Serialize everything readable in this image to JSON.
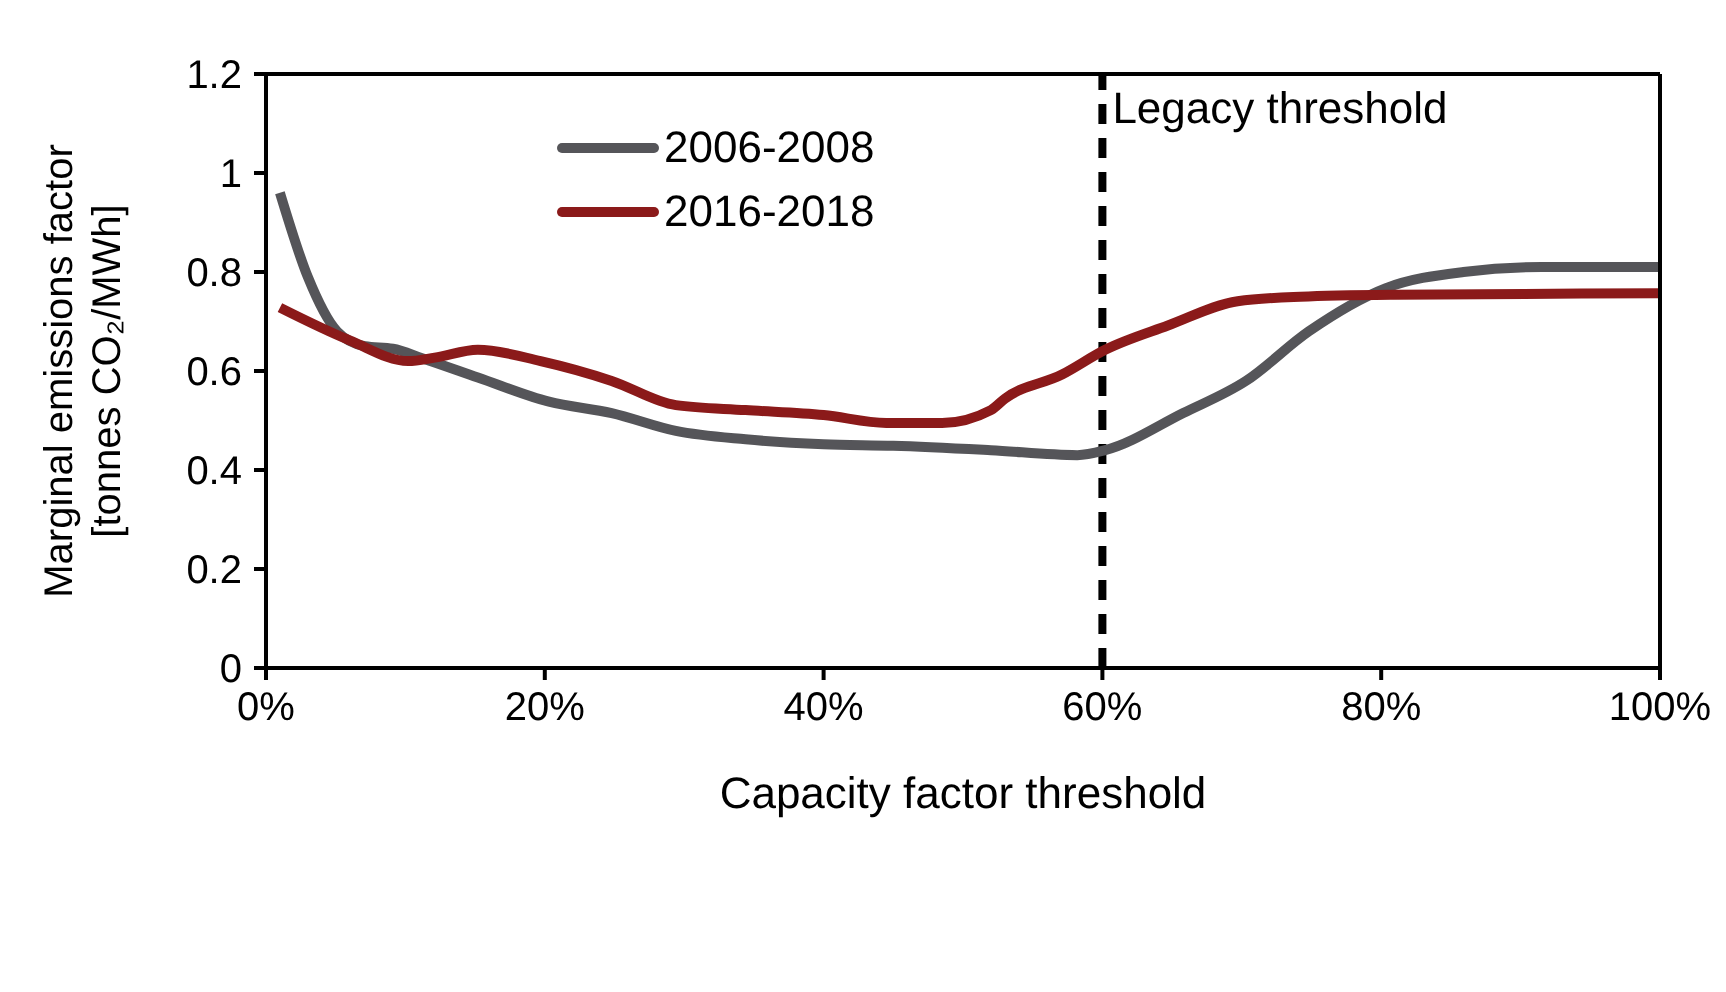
{
  "chart_data": {
    "type": "line",
    "xlabel": "Capacity factor threshold",
    "ylabel": "Marginal emissions factor [tonnes CO₂/MWh]",
    "xlim": [
      0,
      100
    ],
    "xticks": [
      {
        "value": 0,
        "label": "0%"
      },
      {
        "value": 20,
        "label": "20%"
      },
      {
        "value": 40,
        "label": "40%"
      },
      {
        "value": 60,
        "label": "60%"
      },
      {
        "value": 80,
        "label": "80%"
      },
      {
        "value": 100,
        "label": "100%"
      }
    ],
    "ylim": [
      0,
      1.2
    ],
    "yticks": [
      0,
      0.2,
      0.4,
      0.6,
      0.8,
      1,
      1.2
    ],
    "legend": "top left",
    "marker": "none",
    "line_style": "solid",
    "series": [
      {
        "name": "2006-2008",
        "color": "#555559",
        "x": [
          1,
          3,
          5.1,
          7.1,
          9.1,
          11.2,
          15.2,
          20.3,
          24.8,
          29.4,
          34.4,
          40,
          45,
          52,
          58.2,
          60.2,
          65.8,
          70.3,
          74.8,
          80.3,
          85.9,
          91.5,
          100
        ],
        "values": [
          0.96,
          0.79,
          0.68,
          0.65,
          0.645,
          0.626,
          0.587,
          0.538,
          0.515,
          0.479,
          0.462,
          0.452,
          0.449,
          0.44,
          0.43,
          0.44,
          0.515,
          0.58,
          0.68,
          0.767,
          0.8,
          0.81,
          0.81
        ]
      },
      {
        "name": "2016-2018",
        "color": "#8b1a1a",
        "x": [
          1,
          6,
          10.2,
          12.1,
          15.2,
          19.7,
          24.8,
          29.4,
          34.4,
          40,
          44.5,
          48.5,
          52,
          53,
          57.1,
          60.2,
          64.7,
          69.7,
          74.2,
          80.9,
          100
        ],
        "values": [
          0.728,
          0.662,
          0.62,
          0.627,
          0.643,
          0.62,
          0.58,
          0.531,
          0.521,
          0.511,
          0.495,
          0.495,
          0.521,
          0.544,
          0.593,
          0.643,
          0.692,
          0.741,
          0.75,
          0.754,
          0.757
        ]
      }
    ],
    "ref_lines": [
      {
        "axis": "x",
        "value": 60,
        "label": "Legacy threshold",
        "color": "#000000",
        "line_style": "dashed"
      }
    ]
  }
}
